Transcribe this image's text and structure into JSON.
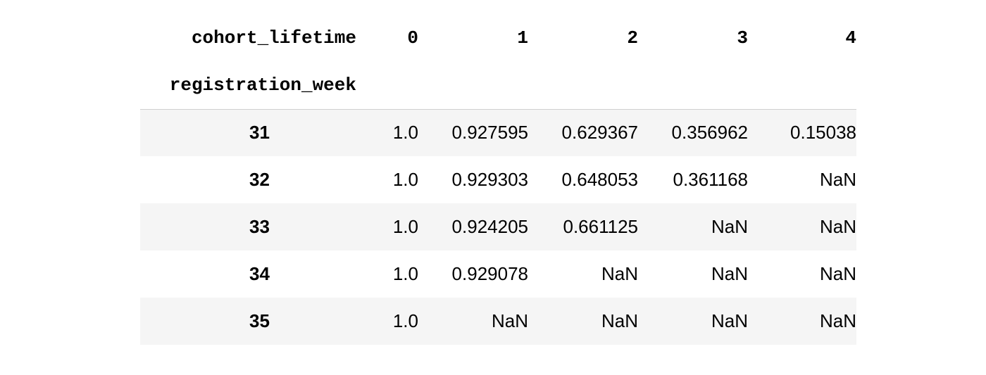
{
  "table": {
    "columns_name": "cohort_lifetime",
    "index_name": "registration_week",
    "columns": [
      "0",
      "1",
      "2",
      "3",
      "4"
    ],
    "rows": [
      {
        "index": "31",
        "values": [
          "1.0",
          "0.927595",
          "0.629367",
          "0.356962",
          "0.15038"
        ]
      },
      {
        "index": "32",
        "values": [
          "1.0",
          "0.929303",
          "0.648053",
          "0.361168",
          "NaN"
        ]
      },
      {
        "index": "33",
        "values": [
          "1.0",
          "0.924205",
          "0.661125",
          "NaN",
          "NaN"
        ]
      },
      {
        "index": "34",
        "values": [
          "1.0",
          "0.929078",
          "NaN",
          "NaN",
          "NaN"
        ]
      },
      {
        "index": "35",
        "values": [
          "1.0",
          "NaN",
          "NaN",
          "NaN",
          "NaN"
        ]
      }
    ]
  }
}
